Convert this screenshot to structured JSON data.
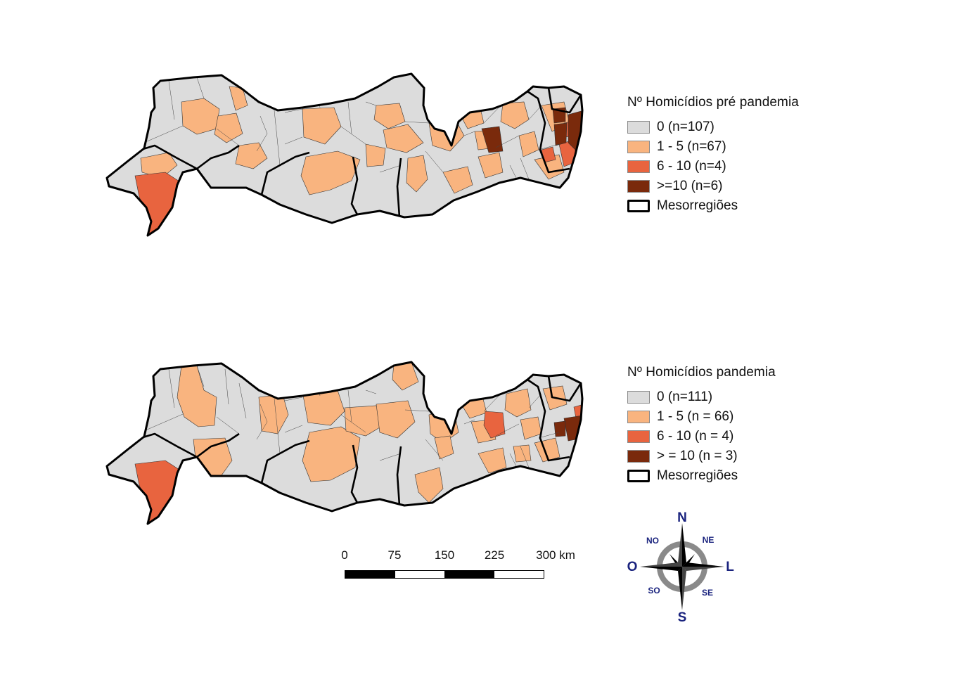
{
  "maps": [
    {
      "legend": {
        "title": "Nº Homicídios pré pandemia",
        "items": [
          {
            "label": "0 (n=107)",
            "color": "#dcdcdc"
          },
          {
            "label": "1 - 5 (n=67)",
            "color": "#f9b47f"
          },
          {
            "label": "6 - 10 (n=4)",
            "color": "#e8643f"
          },
          {
            "label": ">=10 (n=6)",
            "color": "#7a2a0c"
          }
        ],
        "boundary_label": "Mesorregiões"
      }
    },
    {
      "legend": {
        "title": "Nº Homicídios pandemia",
        "items": [
          {
            "label": "0 (n=111)",
            "color": "#dcdcdc"
          },
          {
            "label": "1 - 5 (n = 66)",
            "color": "#f9b47f"
          },
          {
            "label": "6 - 10 (n = 4)",
            "color": "#e8643f"
          },
          {
            "label": "> = 10 (n = 3)",
            "color": "#7a2a0c"
          }
        ],
        "boundary_label": "Mesorregiões"
      }
    }
  ],
  "scale_bar": {
    "labels": [
      "0",
      "75",
      "150",
      "225",
      "300 km"
    ]
  },
  "compass": {
    "N": "N",
    "S": "S",
    "L": "L",
    "O": "O",
    "NE": "NE",
    "NO": "NO",
    "SE": "SE",
    "SO": "SO"
  },
  "colors": {
    "zero": "#dcdcdc",
    "low": "#f9b47f",
    "mid": "#e8643f",
    "high": "#7a2a0c",
    "compass": "#1a237e"
  }
}
